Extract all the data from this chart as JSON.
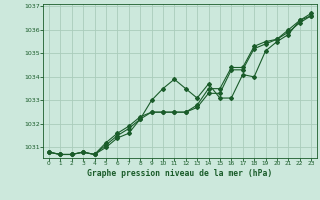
{
  "title": "Graphe pression niveau de la mer (hPa)",
  "background_color": "#cce8dc",
  "grid_color": "#aaccbb",
  "line_color": "#1a5c2a",
  "marker_color": "#1a5c2a",
  "xlim": [
    -0.5,
    23.5
  ],
  "ylim": [
    1030.55,
    1037.1
  ],
  "xticks": [
    0,
    1,
    2,
    3,
    4,
    5,
    6,
    7,
    8,
    9,
    10,
    11,
    12,
    13,
    14,
    15,
    16,
    17,
    18,
    19,
    20,
    21,
    22,
    23
  ],
  "yticks": [
    1031,
    1032,
    1033,
    1034,
    1035,
    1036,
    1037
  ],
  "series1": [
    1030.8,
    1030.7,
    1030.7,
    1030.8,
    1030.7,
    1031.1,
    1031.5,
    1031.8,
    1032.2,
    1033.0,
    1033.5,
    1033.9,
    1033.5,
    1033.1,
    1033.7,
    1033.1,
    1033.1,
    1034.1,
    1034.0,
    1035.1,
    1035.5,
    1035.8,
    1036.4,
    1036.6
  ],
  "series2": [
    1030.8,
    1030.7,
    1030.7,
    1030.8,
    1030.7,
    1031.2,
    1031.6,
    1031.9,
    1032.3,
    1032.5,
    1032.5,
    1032.5,
    1032.5,
    1032.8,
    1033.5,
    1033.5,
    1034.4,
    1034.4,
    1035.3,
    1035.5,
    1035.6,
    1036.0,
    1036.4,
    1036.7
  ],
  "series3": [
    1030.8,
    1030.7,
    1030.7,
    1030.8,
    1030.7,
    1031.0,
    1031.4,
    1031.6,
    1032.2,
    1032.5,
    1032.5,
    1032.5,
    1032.5,
    1032.7,
    1033.3,
    1033.3,
    1034.3,
    1034.3,
    1035.2,
    1035.4,
    1035.6,
    1035.9,
    1036.3,
    1036.6
  ]
}
